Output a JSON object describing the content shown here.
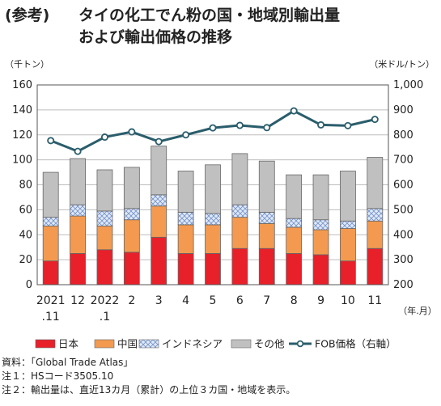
{
  "title": {
    "tag": "(参考)",
    "line1": "タイの化工でん粉の国・地域別輸出量",
    "line2": "および輸出価格の推移"
  },
  "chart_data": {
    "type": "bar",
    "stacked": true,
    "categories": [
      [
        "2021",
        ".11"
      ],
      [
        "12"
      ],
      [
        "2022",
        ".1"
      ],
      [
        "2"
      ],
      [
        "3"
      ],
      [
        "4"
      ],
      [
        "5"
      ],
      [
        "6"
      ],
      [
        "7"
      ],
      [
        "8"
      ],
      [
        "9"
      ],
      [
        "10"
      ],
      [
        "11"
      ]
    ],
    "series": [
      {
        "name": "日本",
        "color": "#e8202a",
        "values": [
          19,
          25,
          28,
          26,
          38,
          25,
          25,
          29,
          29,
          25,
          24,
          19,
          29
        ]
      },
      {
        "name": "中国",
        "color": "#f39a50",
        "values": [
          28,
          30,
          19,
          26,
          25,
          23,
          23,
          25,
          20,
          21,
          20,
          26,
          22
        ]
      },
      {
        "name": "インドネシア",
        "color": "#c8d6ef",
        "pattern": "diamond",
        "values": [
          7,
          9,
          12,
          9,
          9,
          10,
          9,
          10,
          9,
          7,
          8,
          6,
          10
        ]
      },
      {
        "name": "その他",
        "color": "#c0c0c0",
        "values": [
          36,
          37,
          33,
          33,
          39,
          33,
          39,
          41,
          41,
          35,
          36,
          40,
          41
        ]
      }
    ],
    "line_series": {
      "name": "FOB価格（右軸）",
      "axis": "right",
      "color": "#2a5d6b",
      "values": [
        777,
        734,
        791,
        812,
        773,
        800,
        828,
        838,
        829,
        896,
        840,
        837,
        862
      ]
    },
    "y_left": {
      "label": "（千トン）",
      "min": 0,
      "max": 160,
      "ticks": [
        "0",
        "20",
        "40",
        "60",
        "80",
        "100",
        "120",
        "140",
        "160"
      ]
    },
    "y_right": {
      "label": "（米ドル/トン）",
      "min": 200,
      "max": 1000,
      "ticks": [
        "200",
        "300",
        "400",
        "500",
        "600",
        "700",
        "800",
        "900",
        "1,000"
      ]
    },
    "x_unit": "（年.月）",
    "grid": true,
    "legend_position": "bottom"
  },
  "legend": [
    {
      "label": "日本",
      "kind": "box",
      "color": "#e8202a"
    },
    {
      "label": "中国",
      "kind": "box",
      "color": "#f39a50"
    },
    {
      "label": "インドネシア",
      "kind": "pattern",
      "color": "#c8d6ef"
    },
    {
      "label": "その他",
      "kind": "box",
      "color": "#c0c0c0"
    },
    {
      "label": "FOB価格（右軸）",
      "kind": "line",
      "color": "#2a5d6b"
    }
  ],
  "notes": [
    "資料：「Global Trade Atlas」",
    "注１：HSコード3505.10",
    "注２：輸出量は、直近13カ月（累計）の上位３カ国・地域を表示。"
  ]
}
